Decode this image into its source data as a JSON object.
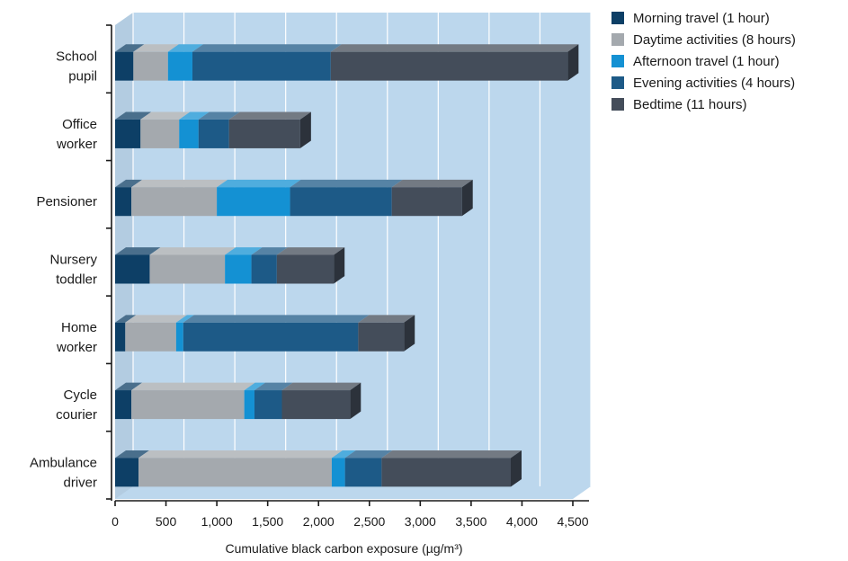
{
  "chart_data": {
    "type": "bar",
    "orientation": "horizontal",
    "stacked": true,
    "style": "3d",
    "categories": [
      [
        "School",
        "pupil"
      ],
      [
        "Office",
        "worker"
      ],
      [
        "Pensioner"
      ],
      [
        "Nursery",
        "toddler"
      ],
      [
        "Home",
        "worker"
      ],
      [
        "Cycle",
        "courier"
      ],
      [
        "Ambulance",
        "driver"
      ]
    ],
    "series": [
      {
        "name": "Morning travel (1 hour)",
        "color": "#0d3f66",
        "values": [
          180,
          250,
          160,
          340,
          100,
          160,
          230
        ]
      },
      {
        "name": "Daytime activities (8 hours)",
        "color": "#a4a9ae",
        "values": [
          340,
          380,
          840,
          740,
          500,
          1110,
          1900
        ]
      },
      {
        "name": "Afternoon travel (1 hour)",
        "color": "#1491d3",
        "values": [
          240,
          190,
          720,
          260,
          70,
          100,
          130
        ]
      },
      {
        "name": "Evening activities (4 hours)",
        "color": "#1d5a87",
        "values": [
          1360,
          300,
          1000,
          250,
          1720,
          270,
          360
        ]
      },
      {
        "name": "Bedtime (11 hours)",
        "color": "#444d5a",
        "values": [
          2330,
          700,
          690,
          560,
          450,
          670,
          1270
        ]
      }
    ],
    "xlabel": "Cumulative black carbon exposure (µg/m³)",
    "xticks": [
      "0",
      "500",
      "1,000",
      "1,500",
      "2,000",
      "2,500",
      "3,000",
      "3,500",
      "4,000",
      "4,500"
    ],
    "xlim": [
      0,
      4500
    ],
    "legend_position": "top-right",
    "background_color": "#bcd7ed"
  }
}
